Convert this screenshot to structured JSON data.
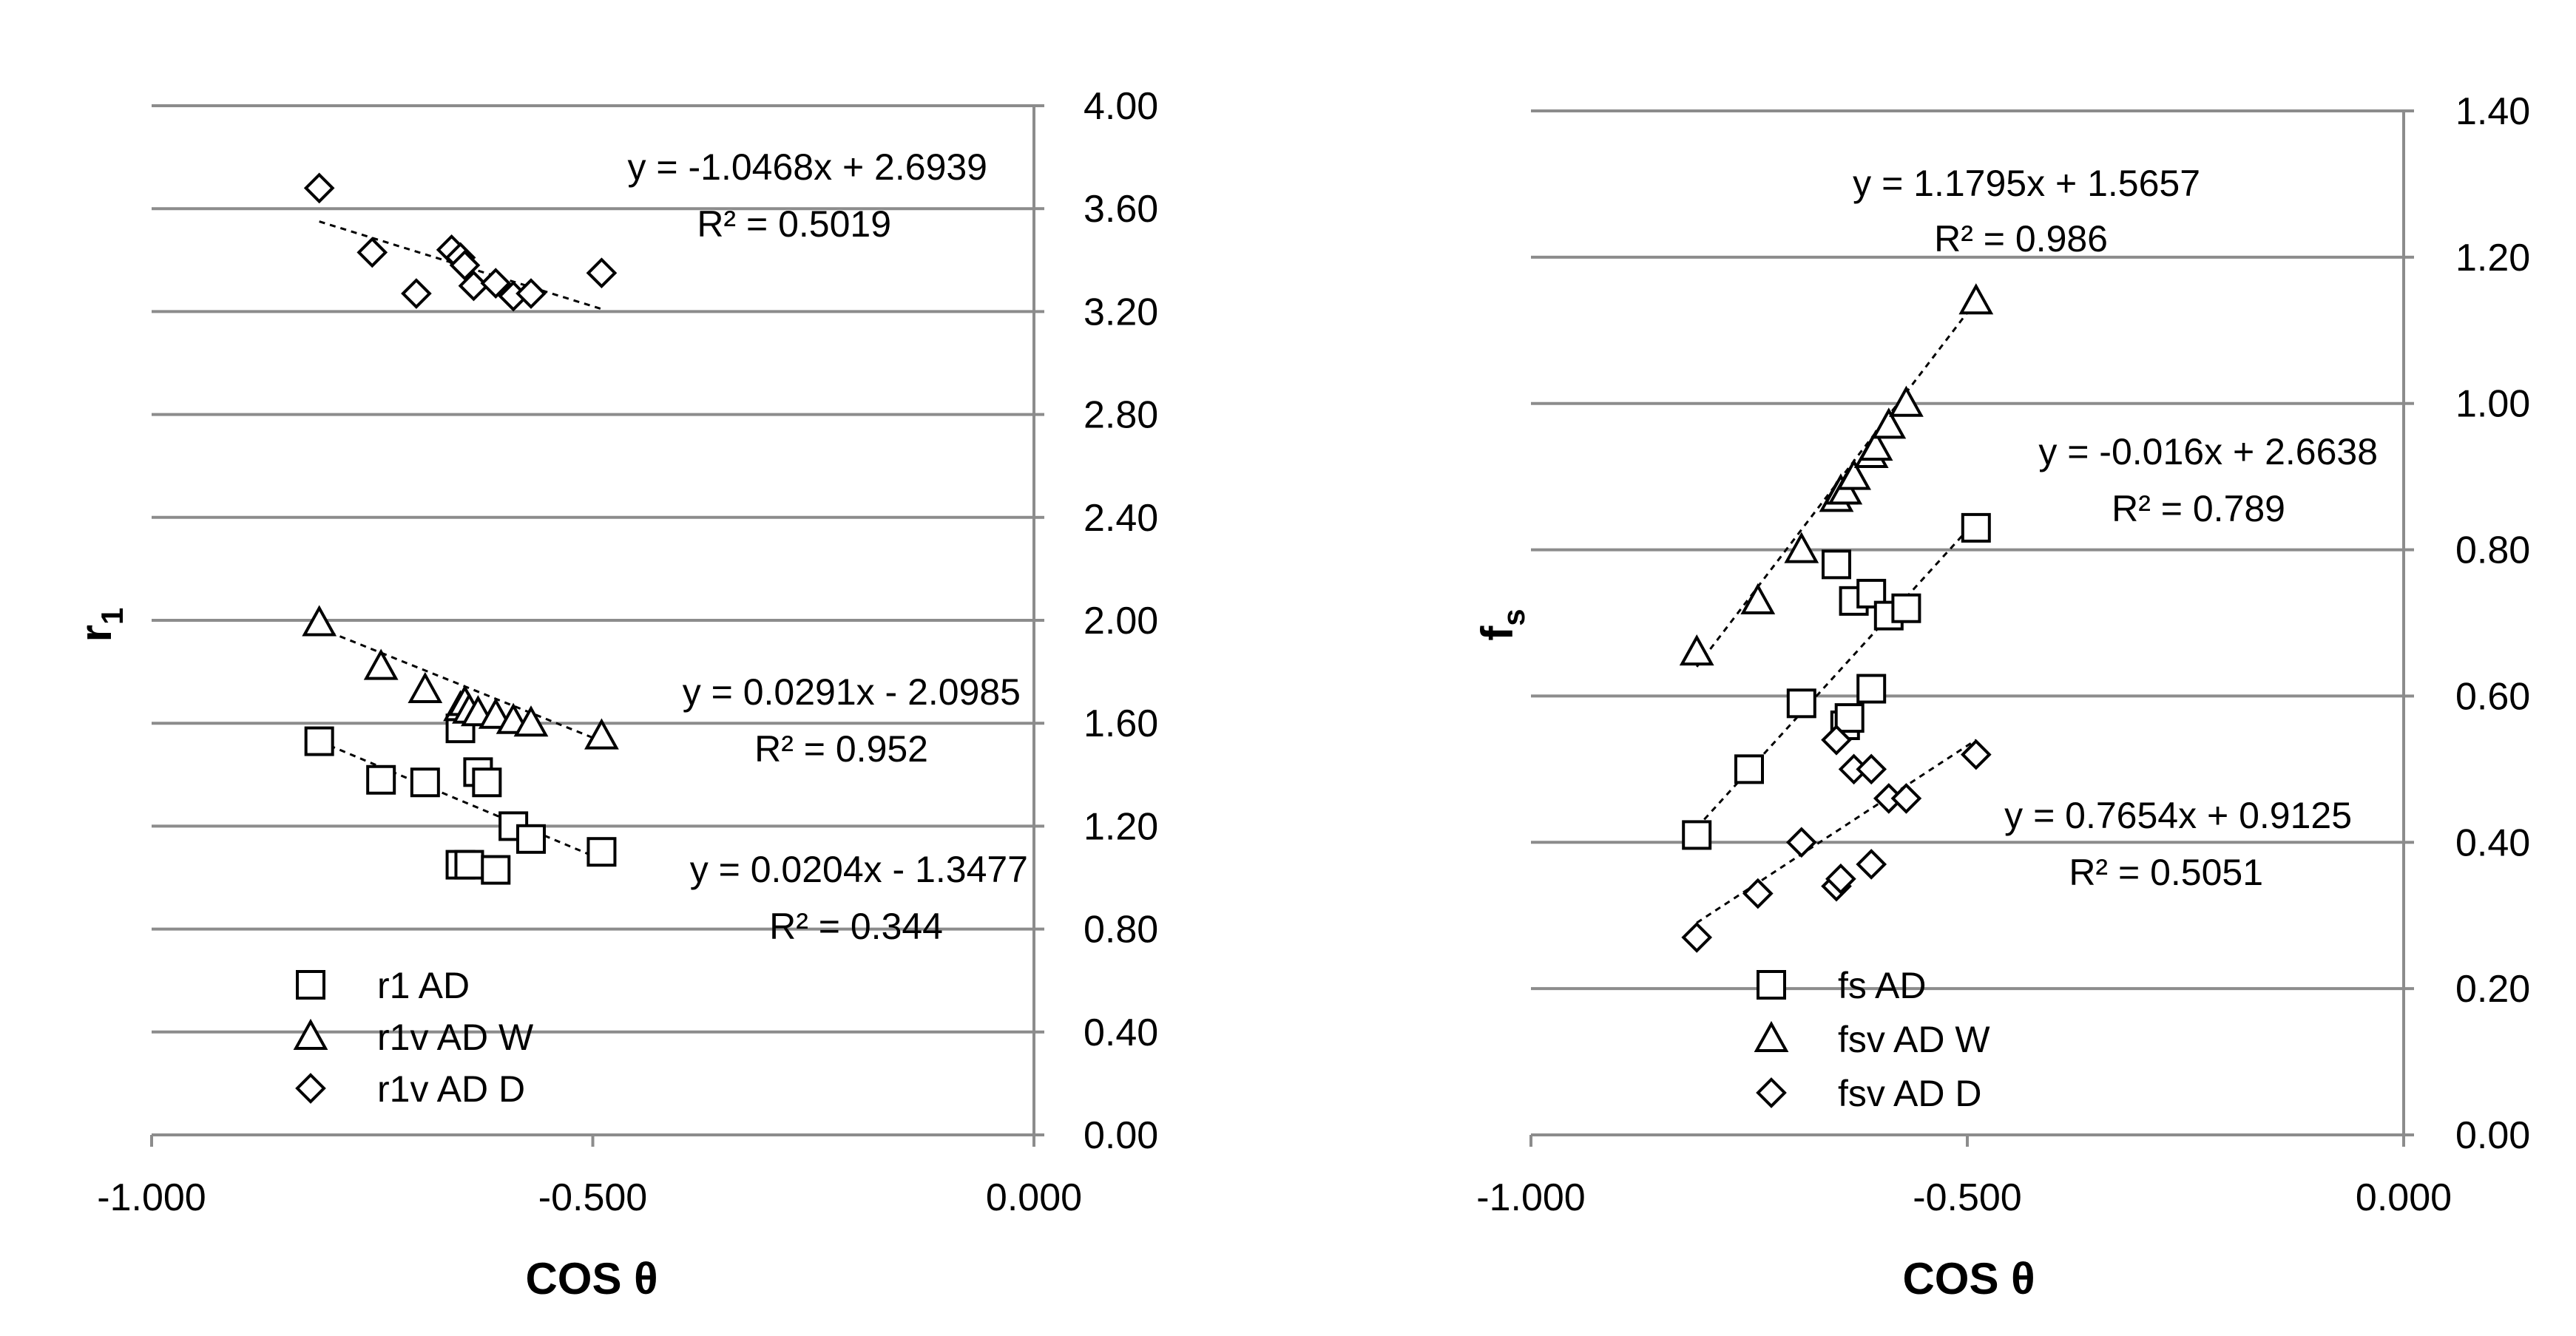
{
  "chart_data": [
    {
      "type": "scatter",
      "xlabel": "COS θ",
      "ylabel": "r",
      "ylabel_sub": "1",
      "xlim": [
        -1.0,
        0.0
      ],
      "ylim": [
        0.0,
        4.0
      ],
      "xticks": [
        "-1.000",
        "-0.500",
        "0.000"
      ],
      "yticks": [
        "0.00",
        "0.40",
        "0.80",
        "1.20",
        "1.60",
        "2.00",
        "2.40",
        "2.80",
        "3.20",
        "3.60",
        "4.00"
      ],
      "y_axis_side": "right",
      "grid": true,
      "legend_position": "bottom-left",
      "series": [
        {
          "name": "r1 AD",
          "marker": "square",
          "points": [
            [
              -0.81,
              1.53
            ],
            [
              -0.74,
              1.38
            ],
            [
              -0.69,
              1.37
            ],
            [
              -0.65,
              1.58
            ],
            [
              -0.65,
              1.05
            ],
            [
              -0.64,
              1.05
            ],
            [
              -0.63,
              1.41
            ],
            [
              -0.62,
              1.37
            ],
            [
              -0.61,
              1.03
            ],
            [
              -0.59,
              1.2
            ],
            [
              -0.57,
              1.15
            ],
            [
              -0.49,
              1.1
            ]
          ],
          "trend": {
            "x": [
              -0.81,
              -0.49
            ],
            "y": [
              1.53,
              1.07
            ]
          },
          "equation": "y = 0.0204x - 1.3477",
          "r2": "R² = 0.344"
        },
        {
          "name": "r1v AD W",
          "marker": "triangle",
          "points": [
            [
              -0.81,
              1.99
            ],
            [
              -0.74,
              1.82
            ],
            [
              -0.69,
              1.73
            ],
            [
              -0.65,
              1.66
            ],
            [
              -0.645,
              1.68
            ],
            [
              -0.64,
              1.65
            ],
            [
              -0.63,
              1.64
            ],
            [
              -0.61,
              1.63
            ],
            [
              -0.59,
              1.61
            ],
            [
              -0.57,
              1.6
            ],
            [
              -0.49,
              1.55
            ]
          ],
          "trend": {
            "x": [
              -0.81,
              -0.49
            ],
            "y": [
              1.97,
              1.53
            ]
          },
          "equation": "y = 0.0291x - 2.0985",
          "r2": "R² = 0.952"
        },
        {
          "name": "r1v AD D",
          "marker": "diamond",
          "points": [
            [
              -0.81,
              3.68
            ],
            [
              -0.75,
              3.43
            ],
            [
              -0.7,
              3.27
            ],
            [
              -0.66,
              3.44
            ],
            [
              -0.65,
              3.41
            ],
            [
              -0.645,
              3.38
            ],
            [
              -0.635,
              3.3
            ],
            [
              -0.61,
              3.31
            ],
            [
              -0.59,
              3.26
            ],
            [
              -0.57,
              3.27
            ],
            [
              -0.49,
              3.35
            ]
          ],
          "trend": {
            "x": [
              -0.81,
              -0.49
            ],
            "y": [
              3.55,
              3.21
            ]
          },
          "equation": "y = -1.0468x + 2.6939",
          "r2": "R² = 0.5019"
        }
      ]
    },
    {
      "type": "scatter",
      "xlabel": "COS θ",
      "ylabel": "f",
      "ylabel_sub": "s",
      "xlim": [
        -1.0,
        0.0
      ],
      "ylim": [
        0.0,
        1.4
      ],
      "xticks": [
        "-1.000",
        "-0.500",
        "0.000"
      ],
      "yticks": [
        "0.00",
        "0.20",
        "0.40",
        "0.60",
        "0.80",
        "1.00",
        "1.20",
        "1.40"
      ],
      "y_axis_side": "right",
      "grid": true,
      "legend_position": "bottom-left",
      "series": [
        {
          "name": "fs AD",
          "marker": "square",
          "points": [
            [
              -0.81,
              0.41
            ],
            [
              -0.75,
              0.5
            ],
            [
              -0.69,
              0.59
            ],
            [
              -0.65,
              0.78
            ],
            [
              -0.64,
              0.56
            ],
            [
              -0.635,
              0.57
            ],
            [
              -0.63,
              0.73
            ],
            [
              -0.61,
              0.74
            ],
            [
              -0.61,
              0.61
            ],
            [
              -0.59,
              0.71
            ],
            [
              -0.57,
              0.72
            ],
            [
              -0.49,
              0.83
            ]
          ],
          "trend": {
            "x": [
              -0.81,
              -0.49
            ],
            "y": [
              0.42,
              0.84
            ]
          },
          "equation": "y = -0.016x + 2.6638",
          "r2": "R² = 0.789"
        },
        {
          "name": "fsv AD W",
          "marker": "triangle",
          "points": [
            [
              -0.81,
              0.66
            ],
            [
              -0.74,
              0.73
            ],
            [
              -0.69,
              0.8
            ],
            [
              -0.65,
              0.87
            ],
            [
              -0.645,
              0.88
            ],
            [
              -0.64,
              0.88
            ],
            [
              -0.63,
              0.9
            ],
            [
              -0.61,
              0.93
            ],
            [
              -0.605,
              0.94
            ],
            [
              -0.59,
              0.97
            ],
            [
              -0.57,
              1.0
            ],
            [
              -0.49,
              1.14
            ]
          ],
          "trend": {
            "x": [
              -0.81,
              -0.49
            ],
            "y": [
              0.64,
              1.14
            ]
          },
          "equation": "y = 1.1795x + 1.5657",
          "r2": "R² = 0.986"
        },
        {
          "name": "fsv AD D",
          "marker": "diamond",
          "points": [
            [
              -0.81,
              0.27
            ],
            [
              -0.74,
              0.33
            ],
            [
              -0.69,
              0.4
            ],
            [
              -0.65,
              0.54
            ],
            [
              -0.65,
              0.34
            ],
            [
              -0.645,
              0.35
            ],
            [
              -0.63,
              0.5
            ],
            [
              -0.61,
              0.5
            ],
            [
              -0.61,
              0.37
            ],
            [
              -0.59,
              0.46
            ],
            [
              -0.57,
              0.46
            ],
            [
              -0.49,
              0.52
            ]
          ],
          "trend": {
            "x": [
              -0.81,
              -0.49
            ],
            "y": [
              0.29,
              0.54
            ]
          },
          "equation": "y = 0.7654x + 0.9125",
          "r2": "R² = 0.5051"
        }
      ]
    }
  ]
}
